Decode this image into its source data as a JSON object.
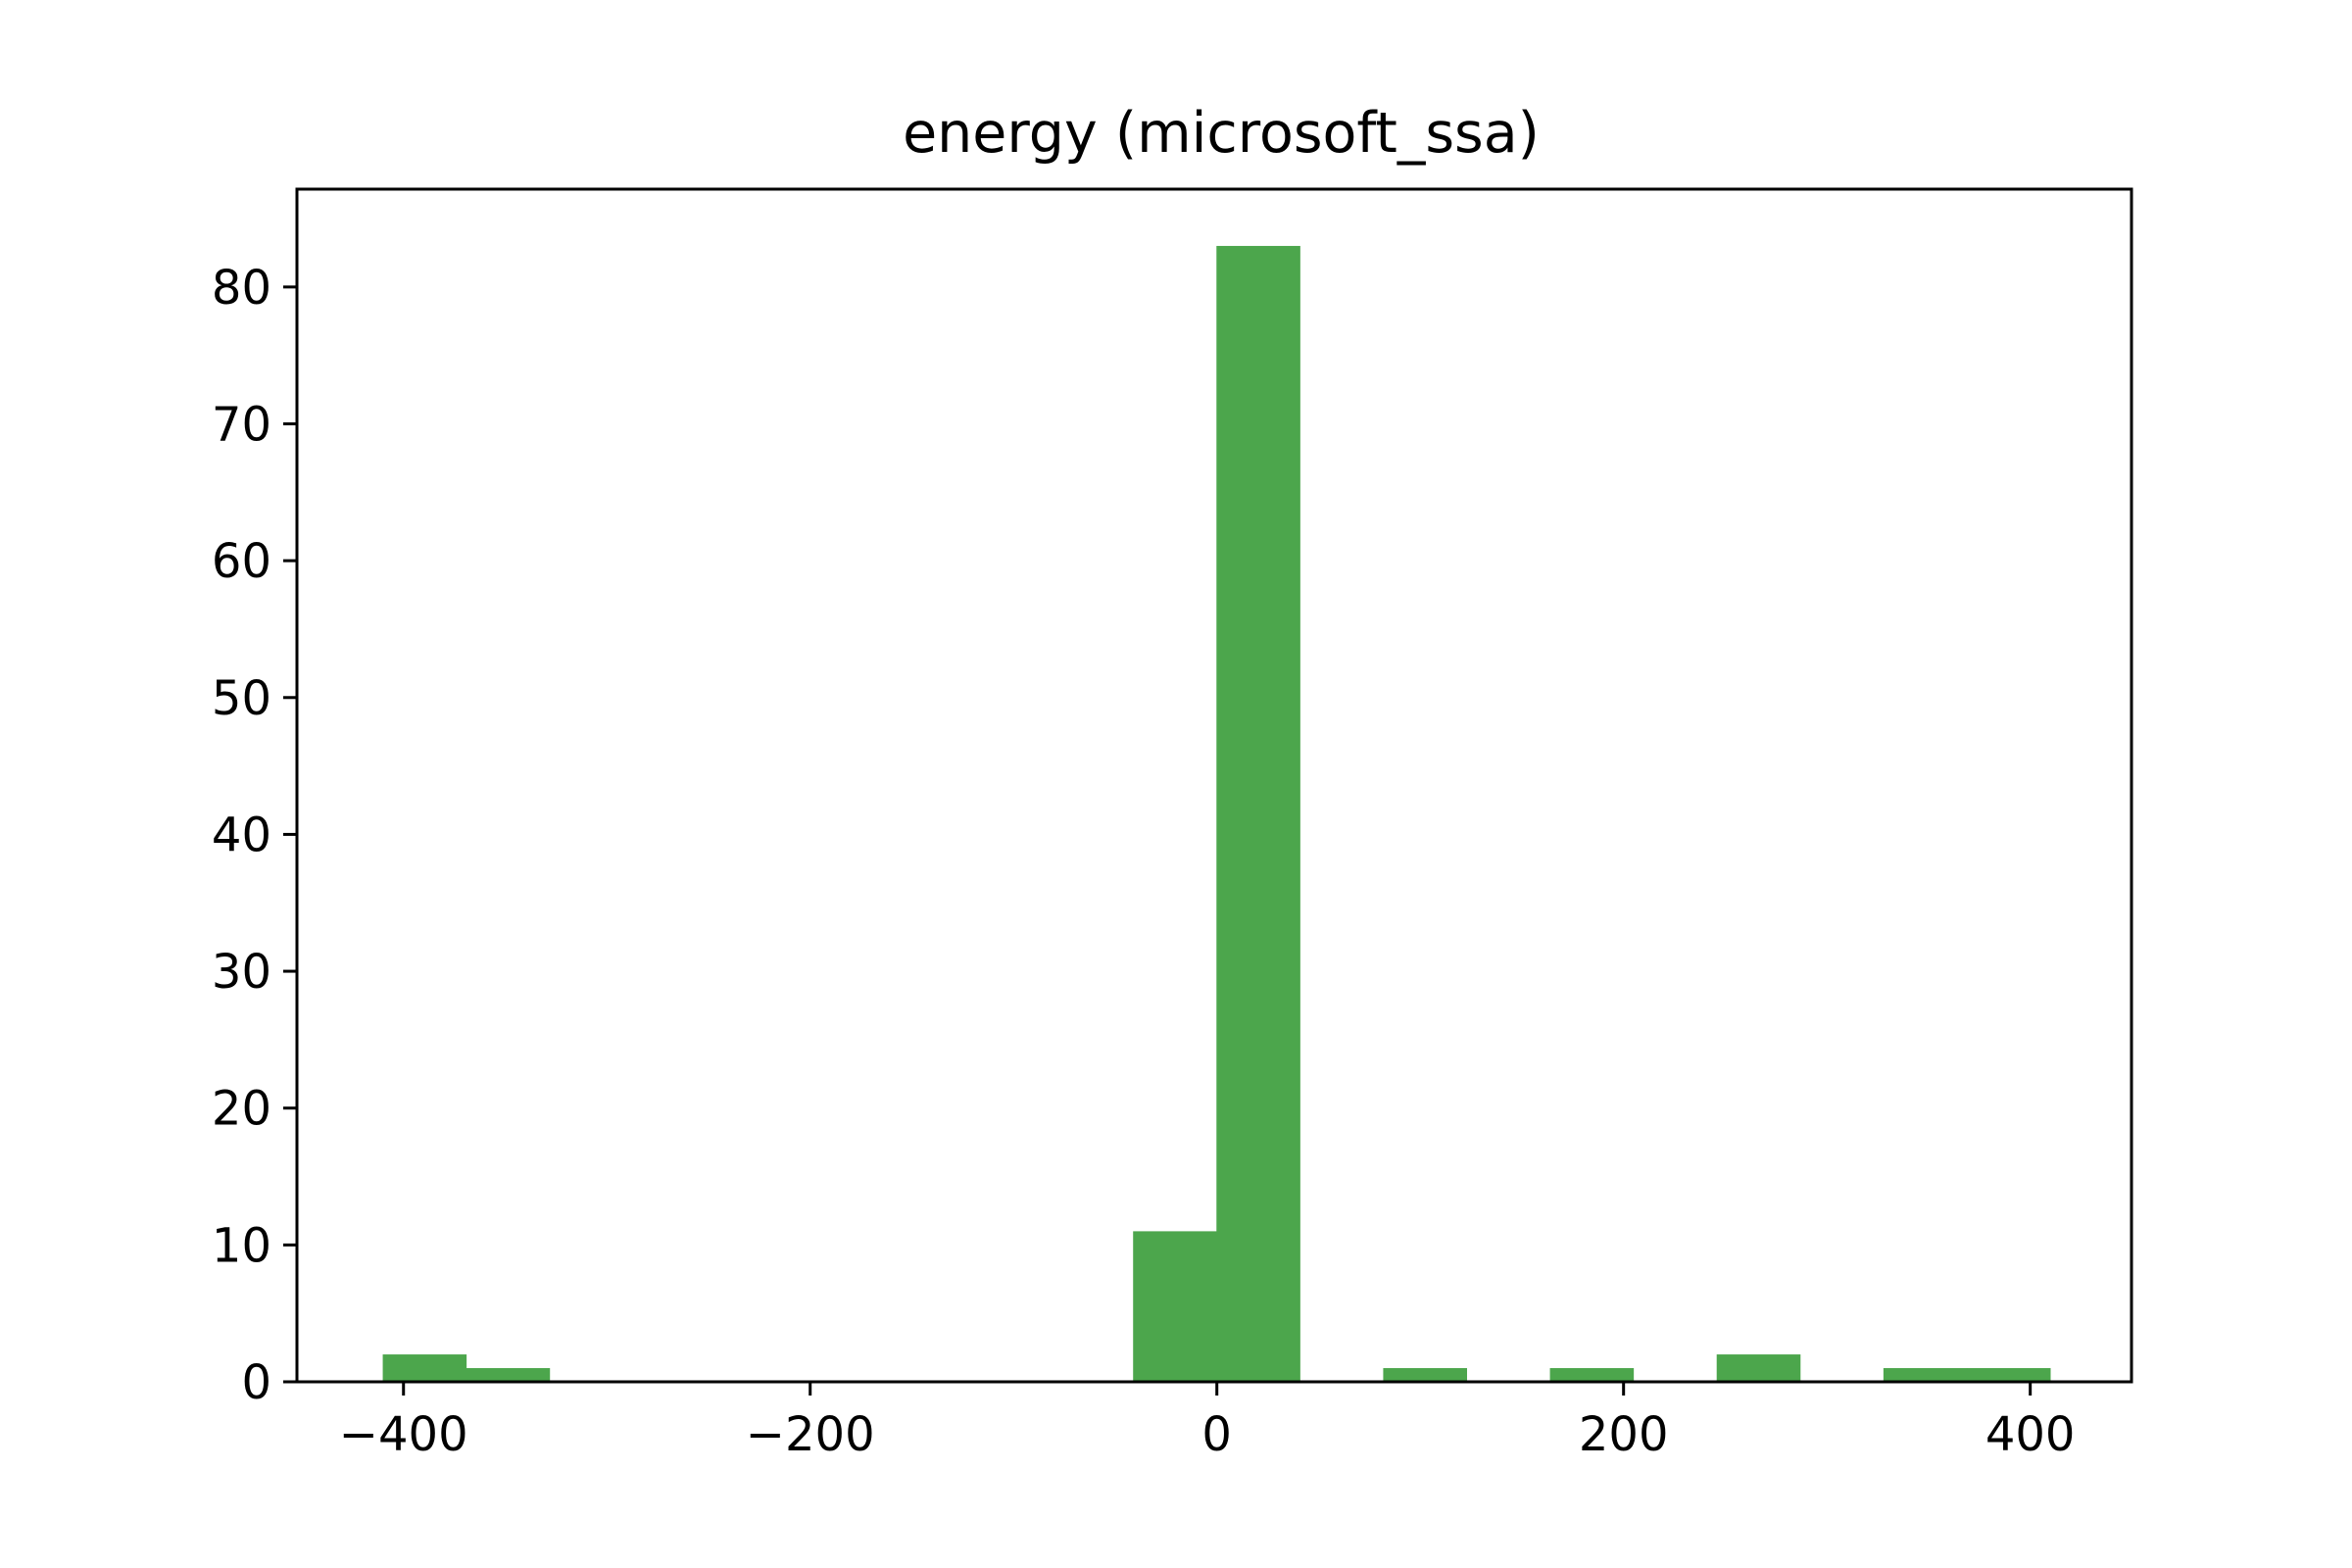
{
  "chart_data": {
    "type": "bar",
    "title": "energy (microsoft_ssa)",
    "xlabel": "",
    "ylabel": "",
    "bar_color": "#4ca64c",
    "xlim": [
      -452.4,
      449.8
    ],
    "ylim": [
      0,
      87.15
    ],
    "xticks": [
      -400,
      -200,
      0,
      200,
      400
    ],
    "xtick_labels": [
      "−400",
      "−200",
      "0",
      "200",
      "400"
    ],
    "yticks": [
      0,
      10,
      20,
      30,
      40,
      50,
      60,
      70,
      80
    ],
    "ytick_labels": [
      "0",
      "10",
      "20",
      "30",
      "40",
      "50",
      "60",
      "70",
      "80"
    ],
    "bin_edges": [
      -410.2,
      -369.2,
      -328.2,
      -287.2,
      -246.2,
      -205.2,
      -164.2,
      -123.2,
      -82.2,
      -41.2,
      -0.2,
      40.8,
      81.8,
      122.8,
      163.8,
      204.8,
      245.8,
      286.8,
      327.8,
      368.8,
      409.8
    ],
    "counts": [
      2,
      1,
      0,
      0,
      0,
      0,
      0,
      0,
      0,
      11,
      83,
      0,
      1,
      0,
      1,
      0,
      2,
      0,
      1,
      1
    ],
    "grid": false
  }
}
